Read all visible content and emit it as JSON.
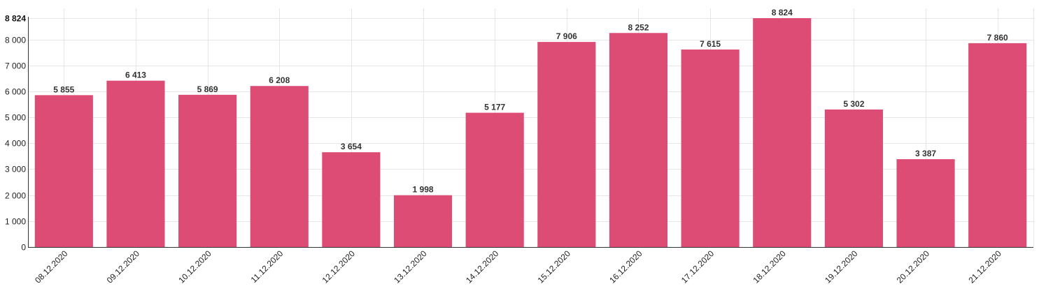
{
  "chart_data": {
    "type": "bar",
    "title": "",
    "xlabel": "",
    "ylabel": "",
    "categories": [
      "08.12.2020",
      "09.12.2020",
      "10.12.2020",
      "11.12.2020",
      "12.12.2020",
      "13.12.2020",
      "14.12.2020",
      "15.12.2020",
      "16.12.2020",
      "17.12.2020",
      "18.12.2020",
      "19.12.2020",
      "20.12.2020",
      "21.12.2020"
    ],
    "values": [
      5855,
      6413,
      5869,
      6208,
      3654,
      1998,
      5177,
      7906,
      8252,
      7615,
      8824,
      5302,
      3387,
      7860
    ],
    "value_labels": [
      "5 855",
      "6 413",
      "5 869",
      "6 208",
      "3 654",
      "1 998",
      "5 177",
      "7 906",
      "8 252",
      "7 615",
      "8 824",
      "5 302",
      "3 387",
      "7 860"
    ],
    "ylim": [
      0,
      8824
    ],
    "y_ticks": [
      0,
      1000,
      2000,
      3000,
      4000,
      5000,
      6000,
      7000,
      8000
    ],
    "y_tick_labels": [
      "0",
      "1 000",
      "2 000",
      "3 000",
      "4 000",
      "5 000",
      "6 000",
      "7 000",
      "8 000"
    ],
    "y_max_label": "8 824",
    "grid": true,
    "legend": "none",
    "bar_color": "#dc4670"
  }
}
